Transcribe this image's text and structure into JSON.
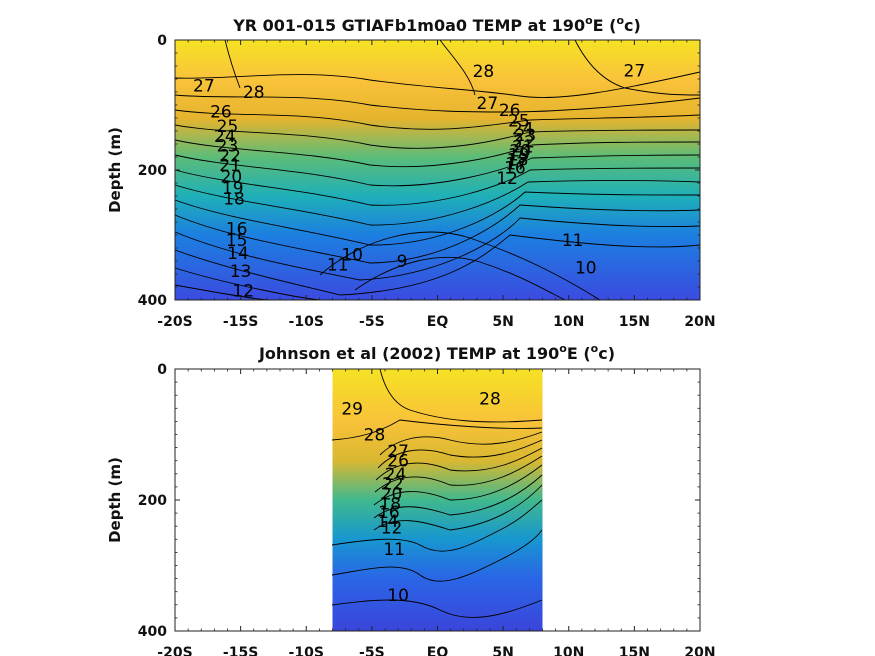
{
  "chart_data": [
    {
      "type": "heatmap",
      "title": "YR 001-015 GTIAFb1m0a0 TEMP at 190",
      "title_super": "o",
      "title_tail": "E (",
      "title_unit_super": "o",
      "title_unit": "c)",
      "ylabel": "Depth (m)",
      "xlabel": "",
      "xlim": [
        -20,
        20
      ],
      "ylim": [
        400,
        0
      ],
      "y_reversed": true,
      "x_ticks": [
        -20,
        -15,
        -10,
        -5,
        0,
        5,
        10,
        15,
        20
      ],
      "x_tick_labels": [
        "-20S",
        "-15S",
        "-10S",
        "-5S",
        "EQ",
        "5N",
        "10N",
        "15N",
        "20N"
      ],
      "y_ticks": [
        0,
        200,
        400
      ],
      "y_tick_labels": [
        "0",
        "200",
        "400"
      ],
      "data_extent": [
        -20,
        20
      ],
      "grid": false,
      "colormap": "parula",
      "contour_labels": [
        {
          "text": "28",
          "x": -14.0,
          "y": 80
        },
        {
          "text": "27",
          "x": -17.8,
          "y": 70
        },
        {
          "text": "26",
          "x": -16.5,
          "y": 110
        },
        {
          "text": "25",
          "x": -16.0,
          "y": 132
        },
        {
          "text": "24",
          "x": -16.2,
          "y": 148
        },
        {
          "text": "23",
          "x": -16.0,
          "y": 162
        },
        {
          "text": "22",
          "x": -15.8,
          "y": 178
        },
        {
          "text": "21",
          "x": -15.8,
          "y": 192
        },
        {
          "text": "20",
          "x": -15.7,
          "y": 210
        },
        {
          "text": "19",
          "x": -15.6,
          "y": 228
        },
        {
          "text": "18",
          "x": -15.5,
          "y": 244
        },
        {
          "text": "16",
          "x": -15.3,
          "y": 290
        },
        {
          "text": "15",
          "x": -15.3,
          "y": 308
        },
        {
          "text": "14",
          "x": -15.2,
          "y": 328
        },
        {
          "text": "13",
          "x": -15.0,
          "y": 355
        },
        {
          "text": "12",
          "x": -14.8,
          "y": 385
        },
        {
          "text": "28",
          "x": 3.5,
          "y": 48
        },
        {
          "text": "27",
          "x": 3.8,
          "y": 97
        },
        {
          "text": "26",
          "x": 5.5,
          "y": 108
        },
        {
          "text": "25",
          "x": 6.2,
          "y": 124
        },
        {
          "text": "24",
          "x": 6.5,
          "y": 136
        },
        {
          "text": "23",
          "x": 6.7,
          "y": 146
        },
        {
          "text": "22",
          "x": 6.6,
          "y": 156
        },
        {
          "text": "21",
          "x": 6.5,
          "y": 164
        },
        {
          "text": "20",
          "x": 6.3,
          "y": 170
        },
        {
          "text": "19",
          "x": 6.2,
          "y": 176
        },
        {
          "text": "18",
          "x": 6.1,
          "y": 184
        },
        {
          "text": "17",
          "x": 6.0,
          "y": 190
        },
        {
          "text": "16",
          "x": 5.9,
          "y": 196
        },
        {
          "text": "12",
          "x": 5.3,
          "y": 212
        },
        {
          "text": "27",
          "x": 15.0,
          "y": 47
        },
        {
          "text": "11",
          "x": 10.3,
          "y": 308
        },
        {
          "text": "10",
          "x": 11.3,
          "y": 350
        },
        {
          "text": "11",
          "x": -7.6,
          "y": 345
        },
        {
          "text": "10",
          "x": -6.5,
          "y": 330
        },
        {
          "text": "9",
          "x": -2.7,
          "y": 340
        }
      ]
    },
    {
      "type": "heatmap",
      "title": "Johnson et al (2002) TEMP at 190",
      "title_super": "o",
      "title_tail": "E (",
      "title_unit_super": "o",
      "title_unit": "c)",
      "ylabel": "Depth (m)",
      "xlabel": "",
      "xlim": [
        -20,
        20
      ],
      "ylim": [
        400,
        0
      ],
      "y_reversed": true,
      "x_ticks": [
        -20,
        -15,
        -10,
        -5,
        0,
        5,
        10,
        15,
        20
      ],
      "x_tick_labels": [
        "-20S",
        "-15S",
        "-10S",
        "-5S",
        "EQ",
        "5N",
        "10N",
        "15N",
        "20N"
      ],
      "y_ticks": [
        0,
        200,
        400
      ],
      "y_tick_labels": [
        "0",
        "200",
        "400"
      ],
      "data_extent": [
        -8,
        8
      ],
      "grid": false,
      "colormap": "parula",
      "contour_labels": [
        {
          "text": "29",
          "x": -6.5,
          "y": 60
        },
        {
          "text": "28",
          "x": -4.8,
          "y": 100
        },
        {
          "text": "28",
          "x": 4.0,
          "y": 45
        },
        {
          "text": "27",
          "x": -3.0,
          "y": 125
        },
        {
          "text": "26",
          "x": -3.0,
          "y": 140
        },
        {
          "text": "24",
          "x": -3.2,
          "y": 160
        },
        {
          "text": "22",
          "x": -3.4,
          "y": 175
        },
        {
          "text": "20",
          "x": -3.5,
          "y": 190
        },
        {
          "text": "18",
          "x": -3.6,
          "y": 205
        },
        {
          "text": "16",
          "x": -3.7,
          "y": 218
        },
        {
          "text": "14",
          "x": -3.8,
          "y": 232
        },
        {
          "text": "12",
          "x": -3.5,
          "y": 242
        },
        {
          "text": "11",
          "x": -3.3,
          "y": 275
        },
        {
          "text": "10",
          "x": -3.0,
          "y": 345
        }
      ]
    }
  ]
}
